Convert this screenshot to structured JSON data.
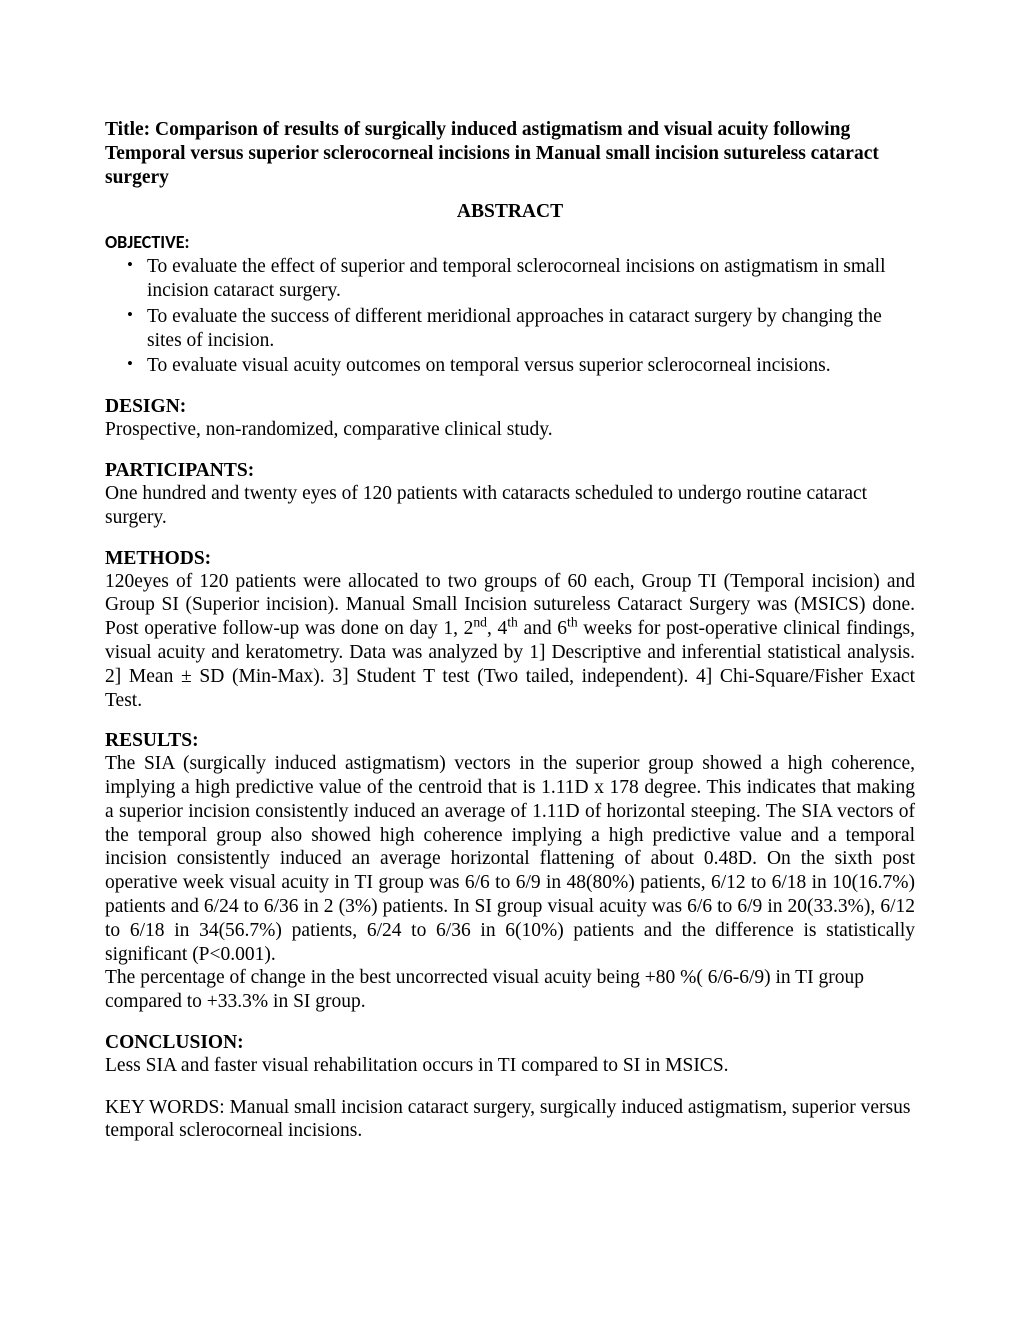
{
  "title": "Title: Comparison of results of surgically induced astigmatism and visual acuity following Temporal versus superior sclerocorneal incisions in Manual small incision sutureless cataract surgery",
  "abstract_label": "ABSTRACT",
  "objective": {
    "heading": "OBJECTIVE:",
    "bullets": [
      "To evaluate the effect of superior and temporal sclerocorneal incisions on astigmatism in small incision cataract surgery.",
      "To evaluate the success of different meridional approaches in cataract surgery by changing the sites of incision.",
      "To evaluate visual acuity outcomes on temporal versus superior sclerocorneal incisions."
    ]
  },
  "design": {
    "heading": "DESIGN:",
    "text": "Prospective, non-randomized, comparative clinical study."
  },
  "participants": {
    "heading": "PARTICIPANTS:",
    "text": "One hundred and twenty eyes of 120 patients with cataracts scheduled to undergo routine cataract surgery."
  },
  "methods": {
    "heading": "METHODS:",
    "pre": "120eyes of 120 patients were allocated to two groups of 60 each, Group TI (Temporal incision) and Group SI (Superior incision). Manual Small Incision sutureless Cataract Surgery was (MSICS) done. Post operative follow-up was done on day 1, 2",
    "sup1": "nd",
    "mid1": ", 4",
    "sup2": "th",
    "mid2": " and 6",
    "sup3": "th",
    "post": " weeks for post-operative clinical findings, visual acuity and keratometry. Data was analyzed by 1] Descriptive and inferential statistical analysis. 2] Mean ± SD (Min-Max). 3] Student T test (Two tailed, independent). 4] Chi-Square/Fisher Exact Test."
  },
  "results": {
    "heading": "RESULTS:",
    "p1": "The SIA (surgically induced astigmatism) vectors in the superior group showed a high coherence, implying a high predictive value of the centroid that is 1.11D x 178 degree. This indicates that making a superior incision consistently induced an average of 1.11D of horizontal steeping. The SIA vectors of the temporal group also showed high coherence implying a high predictive value and a temporal incision consistently induced an average horizontal flattening of about 0.48D. On the sixth post operative week visual acuity in TI group was 6/6 to 6/9 in 48(80%) patients, 6/12 to 6/18 in 10(16.7%) patients and 6/24 to 6/36 in 2 (3%) patients. In SI group visual acuity was 6/6 to 6/9 in 20(33.3%), 6/12 to 6/18 in 34(56.7%) patients, 6/24 to 6/36 in 6(10%) patients and the difference is statistically significant (P<0.001).",
    "p2": "The percentage of change in the best uncorrected visual acuity being +80 %( 6/6-6/9) in TI group compared to +33.3% in SI group."
  },
  "conclusion": {
    "heading": "CONCLUSION:",
    "text": "Less SIA and faster visual rehabilitation occurs in TI compared to SI in MSICS."
  },
  "keywords": "KEY WORDS: Manual small incision cataract surgery, surgically induced astigmatism, superior versus temporal sclerocorneal incisions."
}
